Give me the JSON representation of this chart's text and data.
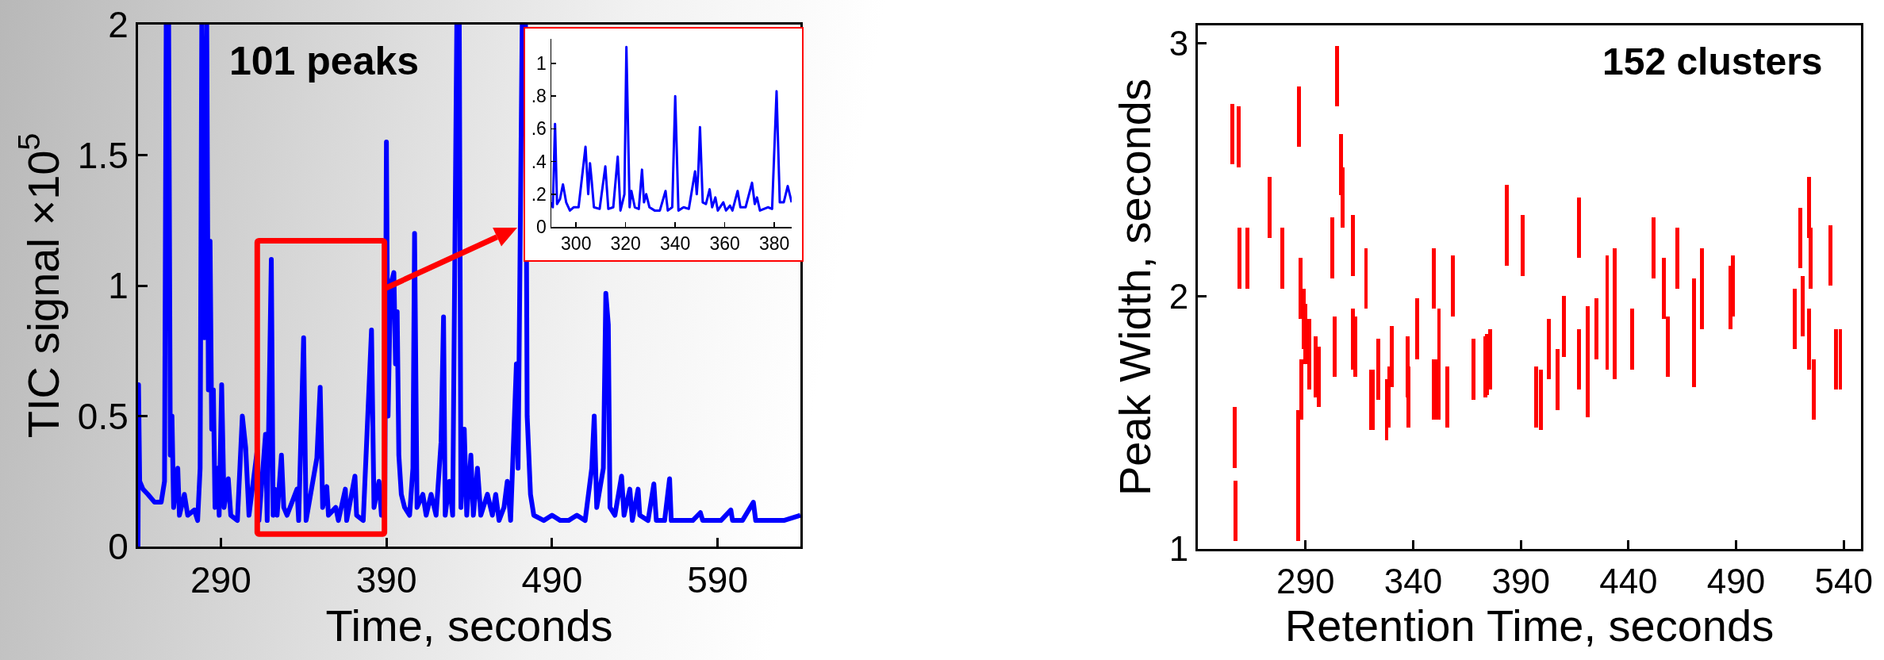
{
  "chart_data": [
    {
      "type": "line",
      "xlabel": "Time, seconds",
      "ylabel": "TIC signal ×10$^{5}$",
      "annotations": [
        "101 peaks"
      ],
      "x": [
        240,
        240.3,
        241,
        243,
        246,
        250,
        254,
        256,
        257,
        258.5,
        259.5,
        260.5,
        261.5,
        264,
        265,
        268,
        270,
        274,
        276,
        277.5,
        278.5,
        280,
        281.5,
        282.5,
        283.5,
        284.5,
        285.5,
        286.5,
        288,
        289,
        290.5,
        292,
        294.5,
        296,
        300,
        303,
        305,
        307,
        312,
        313,
        317,
        318,
        320.5,
        321.6,
        322.5,
        324,
        326.6,
        328,
        330,
        336,
        337,
        340,
        341.5,
        348,
        350,
        351.5,
        354,
        355,
        359.4,
        361,
        365.2,
        366,
        371,
        372,
        376,
        381,
        382.5,
        385.5,
        387,
        389,
        390,
        391,
        392.5,
        394.5,
        395.5,
        396.5,
        397.5,
        399,
        401,
        404,
        406,
        407,
        408.5,
        412,
        414,
        417,
        420,
        423,
        424.5,
        425.5,
        428,
        430,
        432.5,
        434,
        435,
        437,
        438.5,
        441,
        442.5,
        445,
        447,
        451,
        454,
        456,
        458,
        461,
        463,
        465,
        468.5,
        469.5,
        472,
        474,
        475,
        477,
        479,
        485,
        490,
        495,
        500,
        505,
        510,
        514,
        515.5,
        517,
        521,
        522.5,
        524,
        525,
        528,
        532,
        533.5,
        537,
        538.5,
        542,
        543,
        548,
        551.5,
        553,
        558,
        561,
        562,
        565,
        575,
        579.6,
        581,
        585,
        592,
        598,
        599,
        605,
        611.6,
        613,
        620,
        630,
        640
      ],
      "series": [
        {
          "color": "#0000ff",
          "values": [
            0,
            0.62,
            0.25,
            0.22,
            0.2,
            0.17,
            0.17,
            0.25,
            2,
            2,
            0.35,
            0.5,
            0.15,
            0.3,
            0.12,
            0.2,
            0.12,
            0.14,
            0.1,
            0.3,
            2,
            0.8,
            2,
            0.6,
            1.17,
            0.45,
            0.6,
            0.15,
            0.3,
            0.12,
            0.62,
            0.15,
            0.26,
            0.12,
            0.1,
            0.5,
            0.38,
            0.12,
            0.37,
            0.1,
            0.43,
            0.1,
            1.1,
            0.12,
            0.22,
            0.12,
            0.35,
            0.15,
            0.12,
            0.22,
            0.1,
            0.8,
            0.1,
            0.34,
            0.61,
            0.15,
            0.23,
            0.12,
            0.15,
            0.1,
            0.22,
            0.1,
            0.27,
            0.12,
            0.1,
            0.83,
            0.15,
            0.25,
            0.12,
            0.15,
            1.55,
            0.5,
            1.0,
            1.05,
            0.7,
            0.9,
            0.35,
            0.2,
            0.15,
            0.12,
            0.3,
            1.2,
            0.15,
            0.2,
            0.12,
            0.2,
            0.12,
            0.4,
            0.88,
            0.12,
            0.25,
            0.12,
            2,
            2,
            0.15,
            0.45,
            0.12,
            0.35,
            0.12,
            0.3,
            0.12,
            0.2,
            0.12,
            0.2,
            0.1,
            0.15,
            0.25,
            0.1,
            0.7,
            0.3,
            2,
            2,
            0.5,
            0.2,
            0.12,
            0.1,
            0.12,
            0.1,
            0.1,
            0.12,
            0.1,
            0.3,
            0.5,
            0.15,
            0.3,
            0.97,
            0.85,
            0.15,
            0.12,
            0.27,
            0.12,
            0.22,
            0.1,
            0.22,
            0.12,
            0.1,
            0.24,
            0.1,
            0.1,
            0.26,
            0.1,
            0.1,
            0.1,
            0.13,
            0.1,
            0.1,
            0.1,
            0.14,
            0.1,
            0.1,
            0.17,
            0.1,
            0.1,
            0.1,
            0.12
          ]
        }
      ],
      "xlim": [
        240,
        640
      ],
      "xticks": [
        290,
        390,
        490,
        590
      ],
      "ylim": [
        0,
        2
      ],
      "yticks": [
        0,
        0.5,
        1,
        1.5,
        2
      ]
    },
    {
      "type": "line",
      "x": [
        290,
        290.6,
        291.5,
        292.3,
        293.5,
        294.7,
        296,
        297.5,
        299,
        301,
        303.8,
        304.9,
        305.6,
        306.3,
        307.2,
        309.5,
        311.8,
        313,
        315,
        316.8,
        317.9,
        319.5,
        320.3,
        321.6,
        322.3,
        323.7,
        325.3,
        326.6,
        327.4,
        328.3,
        329.6,
        331.7,
        333.8,
        336.1,
        337,
        338.8,
        340,
        341.3,
        343.4,
        345.5,
        348,
        348.7,
        349.3,
        350,
        351.1,
        352.4,
        353.9,
        354.9,
        356.2,
        357.2,
        359.4,
        360.5,
        362.1,
        363.1,
        365.2,
        366.3,
        368.4,
        371,
        372.1,
        373,
        374.2,
        377.4,
        379.1,
        380.9,
        382.2,
        383.8,
        385.4,
        387
      ],
      "series": [
        {
          "color": "#0000ff",
          "values": [
            0.15,
            0.12,
            0.63,
            0.14,
            0.17,
            0.26,
            0.15,
            0.1,
            0.12,
            0.12,
            0.49,
            0.2,
            0.39,
            0.28,
            0.12,
            0.11,
            0.37,
            0.11,
            0.12,
            0.43,
            0.1,
            0.2,
            1.1,
            0.12,
            0.22,
            0.12,
            0.11,
            0.35,
            0.15,
            0.2,
            0.12,
            0.1,
            0.1,
            0.22,
            0.1,
            0.12,
            0.8,
            0.1,
            0.12,
            0.11,
            0.34,
            0.2,
            0.33,
            0.61,
            0.15,
            0.14,
            0.23,
            0.12,
            0.18,
            0.1,
            0.15,
            0.1,
            0.13,
            0.1,
            0.22,
            0.12,
            0.12,
            0.27,
            0.14,
            0.18,
            0.1,
            0.12,
            0.11,
            0.83,
            0.15,
            0.15,
            0.25,
            0.15
          ]
        }
      ],
      "xlim": [
        290,
        387
      ],
      "xticks": [
        300,
        320,
        340,
        360,
        380
      ],
      "ylim": [
        0,
        1.15
      ],
      "yticks": [
        0,
        {
          "value": 0.2,
          "label": ".2"
        },
        {
          "value": 0.4,
          "label": ".4"
        },
        {
          "value": 0.6,
          "label": ".6"
        },
        {
          "value": 0.8,
          "label": ".8"
        },
        1
      ]
    },
    {
      "type": "bar",
      "xlabel": "Retention Time, seconds",
      "ylabel": "Peak Width, seconds",
      "annotations": [
        "152 clusters"
      ],
      "color": "#ff0000",
      "x": [
        256.1,
        257,
        257.5,
        259,
        259.2,
        263.1,
        273.2,
        279.2,
        286.5,
        287,
        287.7,
        288.1,
        289.1,
        289.8,
        291.6,
        294.7,
        296.1,
        302.4,
        303.6,
        304.5,
        306.4,
        307.1,
        311.9,
        312.1,
        313.2,
        318.1,
        320.4,
        321.1,
        323.7,
        327.7,
        328.8,
        330.2,
        337.5,
        337.9,
        341.9,
        349.5,
        349.7,
        350.6,
        352,
        356,
        358.3,
        367.9,
        373.5,
        374.4,
        375.8,
        383.5,
        390.8,
        397.1,
        399.4,
        403,
        407.2,
        410,
        416.9,
        417.1,
        421,
        425,
        430.1,
        433.6,
        441.8,
        451.6,
        456.3,
        458.4,
        462.6,
        470.3,
        474.1,
        487.4,
        488.6,
        517.3,
        519.7,
        520.8,
        523.8,
        524,
        524.6,
        526,
        533.7,
        536.5,
        538.4
      ],
      "base": [
        2.52,
        1.32,
        1.03,
        2.51,
        2.03,
        2.03,
        2.23,
        2.03,
        1.03,
        2.59,
        1.91,
        1.51,
        1.79,
        1.73,
        1.63,
        1.6,
        1.56,
        2.07,
        1.68,
        2.75,
        2.4,
        2.27,
        2.08,
        1.71,
        1.68,
        1.95,
        1.47,
        1.47,
        1.59,
        1.43,
        1.48,
        1.64,
        1.6,
        1.48,
        1.75,
        1.95,
        1.51,
        1.51,
        1.51,
        1.48,
        1.92,
        1.59,
        1.6,
        1.61,
        1.63,
        2.12,
        2.08,
        1.48,
        1.47,
        1.67,
        1.55,
        1.76,
        2.15,
        1.63,
        1.52,
        1.75,
        1.71,
        1.67,
        1.71,
        2.07,
        1.91,
        1.68,
        2.03,
        1.64,
        1.87,
        1.87,
        1.92,
        1.79,
        2.11,
        1.84,
        2.23,
        1.71,
        2.03,
        1.51,
        2.04,
        1.63,
        1.63
      ],
      "values": [
        0.24,
        0.24,
        0.24,
        0.24,
        0.24,
        0.24,
        0.24,
        0.24,
        0.52,
        0.24,
        0.24,
        0.24,
        0.24,
        0.24,
        0.28,
        0.24,
        0.24,
        0.24,
        0.24,
        0.24,
        0.24,
        0.24,
        0.24,
        0.24,
        0.24,
        0.24,
        0.24,
        0.24,
        0.24,
        0.24,
        0.24,
        0.24,
        0.24,
        0.24,
        0.24,
        0.24,
        0.24,
        0.24,
        0.44,
        0.24,
        0.24,
        0.24,
        0.24,
        0.24,
        0.24,
        0.32,
        0.24,
        0.24,
        0.24,
        0.24,
        0.24,
        0.24,
        0.24,
        0.24,
        0.44,
        0.24,
        0.45,
        0.52,
        0.24,
        0.24,
        0.24,
        0.24,
        0.24,
        0.43,
        0.32,
        0.25,
        0.24,
        0.24,
        0.24,
        0.24,
        0.24,
        0.24,
        0.24,
        0.24,
        0.24,
        0.24,
        0.24
      ],
      "xlim": [
        240,
        548
      ],
      "xticks": [
        290,
        340,
        390,
        440,
        490,
        540
      ],
      "ylim": [
        1,
        3.07
      ],
      "yticks": [
        1,
        2,
        3
      ]
    }
  ]
}
